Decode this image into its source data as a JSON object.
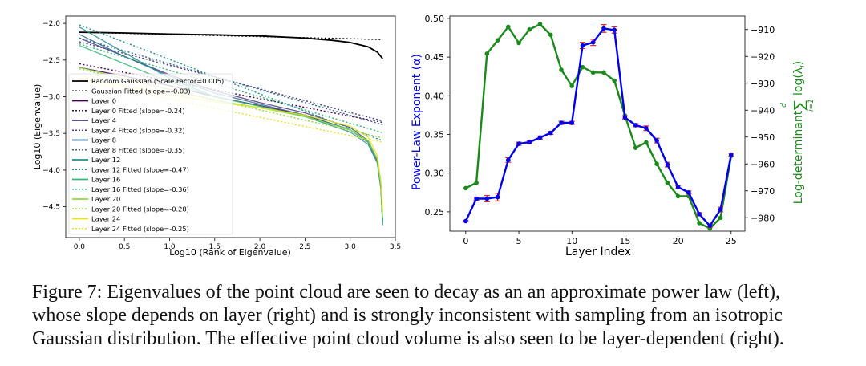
{
  "chart_data": [
    {
      "type": "line",
      "title": "",
      "xlabel": "Log10 (Rank of Eigenvalue)",
      "ylabel": "Log10 (Eigenvalue)",
      "xlim": [
        -0.15,
        3.5
      ],
      "ylim": [
        -4.92,
        -1.9
      ],
      "xticks": [
        0.0,
        0.5,
        1.0,
        1.5,
        2.0,
        2.5,
        3.0,
        3.5
      ],
      "xtick_labels": [
        "0.0",
        "0.5",
        "1.0",
        "1.5",
        "2.0",
        "2.5",
        "3.0",
        "3.5"
      ],
      "yticks": [
        -2.0,
        -2.5,
        -3.0,
        -3.5,
        -4.0,
        -4.5
      ],
      "ytick_labels": [
        "−2.0",
        "−2.5",
        "−3.0",
        "−3.5",
        "−4.0",
        "−4.5"
      ],
      "grid": false,
      "legend_position": "lower-left",
      "series": [
        {
          "name": "Random Gaussian (Scale Factor=0.005)",
          "style": "solid",
          "color": "#000000",
          "x": [
            0,
            0.5,
            1.0,
            1.5,
            2.0,
            2.5,
            2.8,
            3.0,
            3.2,
            3.3,
            3.36
          ],
          "y": [
            -2.12,
            -2.13,
            -2.145,
            -2.155,
            -2.17,
            -2.2,
            -2.23,
            -2.26,
            -2.32,
            -2.39,
            -2.48
          ]
        },
        {
          "name": "Gaussian Fitted (slope=-0.03)",
          "style": "dotted",
          "color": "#000000",
          "x": [
            0,
            3.36
          ],
          "y": [
            -2.12,
            -2.22
          ]
        },
        {
          "name": "Layer 0",
          "style": "solid",
          "color": "#440154",
          "x": [
            0,
            0.5,
            1.0,
            1.5,
            2.0,
            2.5,
            3.0,
            3.2,
            3.3,
            3.34,
            3.36
          ],
          "y": [
            -2.6,
            -2.72,
            -2.85,
            -3.0,
            -3.12,
            -3.25,
            -3.45,
            -3.62,
            -3.85,
            -4.2,
            -4.7
          ]
        },
        {
          "name": "Layer 0 Fitted (slope=-0.24)",
          "style": "dotted",
          "color": "#440154",
          "x": [
            0,
            3.36
          ],
          "y": [
            -2.55,
            -3.35
          ]
        },
        {
          "name": "Layer 4",
          "style": "solid",
          "color": "#443a83",
          "x": [
            0,
            0.5,
            1.0,
            1.5,
            2.0,
            2.5,
            3.0,
            3.2,
            3.3,
            3.34,
            3.36
          ],
          "y": [
            -2.2,
            -2.45,
            -2.7,
            -2.92,
            -3.08,
            -3.22,
            -3.42,
            -3.6,
            -3.85,
            -4.2,
            -4.7
          ]
        },
        {
          "name": "Layer 4 Fitted (slope=-0.32)",
          "style": "dotted",
          "color": "#443a83",
          "x": [
            0,
            3.36
          ],
          "y": [
            -2.25,
            -3.33
          ]
        },
        {
          "name": "Layer 8",
          "style": "solid",
          "color": "#31688e",
          "x": [
            0,
            0.5,
            1.0,
            1.5,
            2.0,
            2.5,
            3.0,
            3.2,
            3.3,
            3.34,
            3.36
          ],
          "y": [
            -2.15,
            -2.45,
            -2.72,
            -2.95,
            -3.1,
            -3.25,
            -3.45,
            -3.62,
            -3.88,
            -4.25,
            -4.75
          ]
        },
        {
          "name": "Layer 8 Fitted (slope=-0.35)",
          "style": "dotted",
          "color": "#31688e",
          "x": [
            0,
            3.36
          ],
          "y": [
            -2.2,
            -3.38
          ]
        },
        {
          "name": "Layer 12",
          "style": "solid",
          "color": "#21918c",
          "x": [
            0,
            0.5,
            1.0,
            1.5,
            2.0,
            2.5,
            3.0,
            3.2,
            3.3,
            3.34,
            3.36
          ],
          "y": [
            -2.05,
            -2.4,
            -2.75,
            -3.0,
            -3.13,
            -3.27,
            -3.48,
            -3.65,
            -3.9,
            -4.25,
            -4.72
          ]
        },
        {
          "name": "Layer 12 Fitted (slope=-0.47)",
          "style": "dotted",
          "color": "#21918c",
          "x": [
            0,
            3.36
          ],
          "y": [
            -2.02,
            -3.6
          ]
        },
        {
          "name": "Layer 16",
          "style": "solid",
          "color": "#35b779",
          "x": [
            0,
            0.5,
            1.0,
            1.5,
            2.0,
            2.5,
            3.0,
            3.2,
            3.3,
            3.34,
            3.36
          ],
          "y": [
            -2.3,
            -2.55,
            -2.8,
            -3.0,
            -3.13,
            -3.27,
            -3.45,
            -3.62,
            -3.85,
            -4.2,
            -4.7
          ]
        },
        {
          "name": "Layer 16 Fitted (slope=-0.36)",
          "style": "dotted",
          "color": "#35b779",
          "x": [
            0,
            3.36
          ],
          "y": [
            -2.28,
            -3.49
          ]
        },
        {
          "name": "Layer 20",
          "style": "solid",
          "color": "#90d743",
          "x": [
            0,
            0.5,
            1.0,
            1.5,
            2.0,
            2.5,
            3.0,
            3.2,
            3.3,
            3.34,
            3.36
          ],
          "y": [
            -2.6,
            -2.75,
            -2.9,
            -3.05,
            -3.15,
            -3.27,
            -3.45,
            -3.6,
            -3.85,
            -4.2,
            -4.65
          ]
        },
        {
          "name": "Layer 20 Fitted (slope=-0.28)",
          "style": "dotted",
          "color": "#90d743",
          "x": [
            0,
            3.36
          ],
          "y": [
            -2.62,
            -3.56
          ]
        },
        {
          "name": "Layer 24",
          "style": "solid",
          "color": "#e8e419",
          "x": [
            0,
            0.5,
            1.0,
            1.5,
            2.0,
            2.5,
            3.0,
            3.2,
            3.3,
            3.34,
            3.36
          ],
          "y": [
            -2.75,
            -2.85,
            -2.97,
            -3.07,
            -3.15,
            -3.25,
            -3.4,
            -3.55,
            -3.8,
            -4.15,
            -4.55
          ]
        },
        {
          "name": "Layer 24 Fitted (slope=-0.25)",
          "style": "dotted",
          "color": "#e8e419",
          "x": [
            0,
            3.36
          ],
          "y": [
            -2.78,
            -3.62
          ]
        }
      ]
    },
    {
      "type": "line",
      "title": "",
      "xlabel": "Layer Index",
      "ylabel_left": "Power-Law Exponent (α)",
      "ylabel_right_main": "Log-determinant",
      "ylabel_right_sum_top": "d",
      "ylabel_right_sum_sign": "∑",
      "ylabel_right_sum_bottom": "i=1",
      "ylabel_right_term": "log(λ",
      "ylabel_right_term_sub": "i",
      "ylabel_right_term_close": ")",
      "xlim": [
        -1.5,
        26.3
      ],
      "ylim_left": [
        0.225,
        0.503
      ],
      "ylim_right": [
        -985,
        -905
      ],
      "xticks": [
        0,
        5,
        10,
        15,
        20,
        25
      ],
      "xtick_labels": [
        "0",
        "5",
        "10",
        "15",
        "20",
        "25"
      ],
      "yticks_left": [
        0.25,
        0.3,
        0.35,
        0.4,
        0.45,
        0.5
      ],
      "ytick_labels_left": [
        "0.25",
        "0.30",
        "0.35",
        "0.40",
        "0.45",
        "0.50"
      ],
      "yticks_right": [
        -910,
        -920,
        -930,
        -940,
        -950,
        -960,
        -970,
        -980
      ],
      "ytick_labels_right": [
        "−910",
        "−920",
        "−930",
        "−940",
        "−950",
        "−960",
        "−970",
        "−980"
      ],
      "grid": false,
      "series": [
        {
          "axis": "left",
          "color": "#0000ee",
          "error_color": "#ee2222",
          "x": [
            0,
            1,
            2,
            3,
            4,
            5,
            6,
            7,
            8,
            9,
            10,
            11,
            12,
            13,
            14,
            15,
            16,
            17,
            18,
            19,
            20,
            21,
            22,
            23,
            24,
            25
          ],
          "y": [
            0.238,
            0.267,
            0.267,
            0.269,
            0.317,
            0.338,
            0.34,
            0.346,
            0.352,
            0.365,
            0.365,
            0.465,
            0.469,
            0.487,
            0.485,
            0.372,
            0.362,
            0.358,
            0.342,
            0.311,
            0.282,
            0.275,
            0.247,
            0.232,
            0.253,
            0.324
          ],
          "err": [
            0.001,
            0.002,
            0.004,
            0.005,
            0.003,
            0.002,
            0.002,
            0.002,
            0.002,
            0.002,
            0.002,
            0.004,
            0.004,
            0.005,
            0.004,
            0.002,
            0.002,
            0.003,
            0.003,
            0.003,
            0.002,
            0.002,
            0.002,
            0.002,
            0.003,
            0.002
          ]
        },
        {
          "axis": "right",
          "color": "#1a8a1a",
          "x": [
            0,
            1,
            2,
            3,
            4,
            5,
            6,
            7,
            8,
            9,
            10,
            11,
            12,
            13,
            14,
            15,
            16,
            17,
            18,
            19,
            20,
            21,
            22,
            23,
            24,
            25
          ],
          "y": [
            -969,
            -967,
            -919,
            -914,
            -909,
            -915,
            -910,
            -908,
            -912,
            -925,
            -931,
            -924,
            -926,
            -926,
            -929,
            -942,
            -954,
            -952,
            -960,
            -967,
            -972,
            -972,
            -982,
            -984,
            -980,
            -957
          ]
        }
      ]
    }
  ],
  "caption": {
    "lines": [
      "Figure 7: Eigenvalues of the point cloud are seen to decay as an an approximate power law (left),",
      "whose slope depends on layer (right) and is strongly inconsistent with sampling from an isotropic",
      "Gaussian distribution. The effective point cloud volume is also seen to be layer-dependent (right)."
    ]
  }
}
